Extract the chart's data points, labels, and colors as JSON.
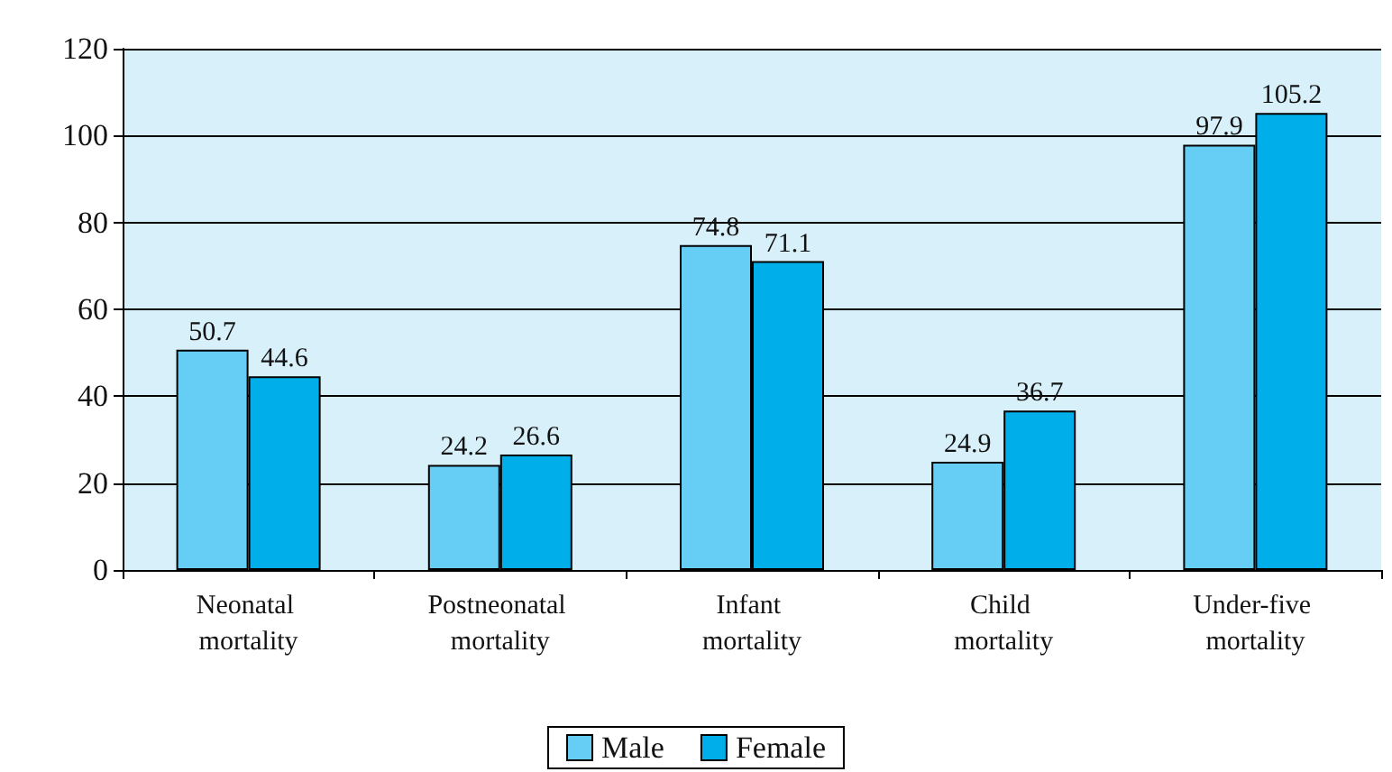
{
  "chart_data": {
    "type": "bar",
    "categories": [
      "Neonatal mortality",
      "Postneonatal mortality",
      "Infant mortality",
      "Child mortality",
      "Under-five mortality"
    ],
    "series": [
      {
        "name": "Male",
        "color": "#66cdf4",
        "values": [
          50.7,
          24.2,
          74.8,
          24.9,
          97.9
        ]
      },
      {
        "name": "Female",
        "color": "#00aee9",
        "values": [
          44.6,
          26.6,
          71.1,
          36.7,
          105.2
        ]
      }
    ],
    "ylim": [
      0,
      120
    ],
    "yticks": [
      0,
      20,
      40,
      60,
      80,
      100,
      120
    ],
    "grid": "y",
    "legend": "bottom",
    "data_labels": true
  }
}
